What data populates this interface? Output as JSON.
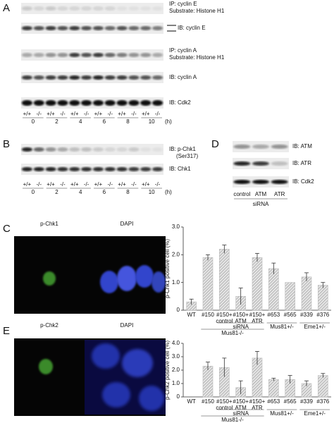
{
  "panels": {
    "A": {
      "letter": "A",
      "blot_labels": [
        "IP: cyclin E",
        "Substrate: Histone H1",
        "IB: cyclin E",
        "IP: cyclin A",
        "Substrate: Histone H1",
        "IB: cyclin A",
        "IB: Cdk2"
      ],
      "genotypes": [
        "+/+",
        "-/-",
        "+/+",
        "-/-",
        "+/+",
        "-/-",
        "+/+",
        "-/-",
        "+/+",
        "-/-",
        "+/+",
        "-/-"
      ],
      "times": [
        "0",
        "2",
        "4",
        "6",
        "8",
        "10"
      ],
      "unit": "(h)"
    },
    "B": {
      "letter": "B",
      "blot_labels": [
        "IB: p-Chk1",
        "(Ser317)",
        "IB: Chk1"
      ],
      "genotypes": [
        "+/+",
        "-/-",
        "+/+",
        "-/-",
        "+/+",
        "-/-",
        "+/+",
        "-/-",
        "+/+",
        "-/-",
        "+/+",
        "-/-"
      ],
      "times": [
        "0",
        "2",
        "4",
        "6",
        "8",
        "10"
      ],
      "unit": "(h)"
    },
    "D": {
      "letter": "D",
      "blot_labels": [
        "IB: ATM",
        "IB: ATR",
        "IB: Cdk2"
      ],
      "lanes": [
        "control",
        "ATM",
        "ATR"
      ],
      "group": "siRNA"
    },
    "C": {
      "letter": "C",
      "image_labels": [
        "p-Chk1",
        "DAPI"
      ]
    },
    "E": {
      "letter": "E",
      "image_labels": [
        "p-Chk2",
        "DAPI"
      ]
    }
  },
  "chart_data": [
    {
      "type": "bar",
      "y_label": "p-Chk1 positive cell (%)",
      "categories": [
        [
          "WT"
        ],
        [
          "#150"
        ],
        [
          "#150+",
          "control"
        ],
        [
          "#150+",
          "ATM"
        ],
        [
          "#150+",
          "ATR"
        ],
        [
          "#653"
        ],
        [
          "#565"
        ],
        [
          "#339"
        ],
        [
          "#376"
        ]
      ],
      "groups": [
        {
          "name": "siRNA",
          "span": [
            2,
            4
          ]
        },
        {
          "name": "Mus81-/-",
          "span": [
            1,
            4
          ]
        },
        {
          "name": "Mus81+/-",
          "span": [
            5,
            6
          ]
        },
        {
          "name": "Eme1+/-",
          "span": [
            7,
            8
          ]
        }
      ],
      "values": [
        0.3,
        1.9,
        2.2,
        0.5,
        1.9,
        1.5,
        1.0,
        1.2,
        0.9
      ],
      "errors": [
        0.1,
        0.1,
        0.15,
        0.3,
        0.15,
        0.2,
        0,
        0.15,
        0.1
      ],
      "ylim": [
        0,
        3
      ],
      "yticks": [
        0,
        {
          "value": 1,
          "label": "1.0"
        },
        {
          "value": 2,
          "label": "2.0"
        },
        {
          "value": 3,
          "label": "3.0"
        }
      ],
      "color": "#bbbbbb"
    },
    {
      "type": "bar",
      "y_label": "p-Chk2 positive cell (%)",
      "categories": [
        [
          "WT"
        ],
        [
          "#150"
        ],
        [
          "#150+",
          "control"
        ],
        [
          "#150+",
          "ATM"
        ],
        [
          "#150+",
          "ATR"
        ],
        [
          "#653"
        ],
        [
          "#565"
        ],
        [
          "#339"
        ],
        [
          "#376"
        ]
      ],
      "groups": [
        {
          "name": "siRNA",
          "span": [
            2,
            4
          ]
        },
        {
          "name": "Mus81-/-",
          "span": [
            1,
            4
          ]
        },
        {
          "name": "Mus81+/-",
          "span": [
            5,
            6
          ]
        },
        {
          "name": "Eme1+/-",
          "span": [
            7,
            8
          ]
        }
      ],
      "values": [
        0,
        2.3,
        2.2,
        0.7,
        2.9,
        1.3,
        1.3,
        1.0,
        1.6
      ],
      "errors": [
        0,
        0.3,
        0.7,
        0.5,
        0.5,
        0.1,
        0.3,
        0.2,
        0.15
      ],
      "ylim": [
        0,
        4
      ],
      "yticks": [
        0,
        {
          "value": 1,
          "label": "1.0"
        },
        {
          "value": 2,
          "label": "2.0"
        },
        {
          "value": 3,
          "label": "3.0"
        },
        {
          "value": 4,
          "label": "4.0"
        }
      ],
      "color": "#bbbbbb"
    }
  ]
}
